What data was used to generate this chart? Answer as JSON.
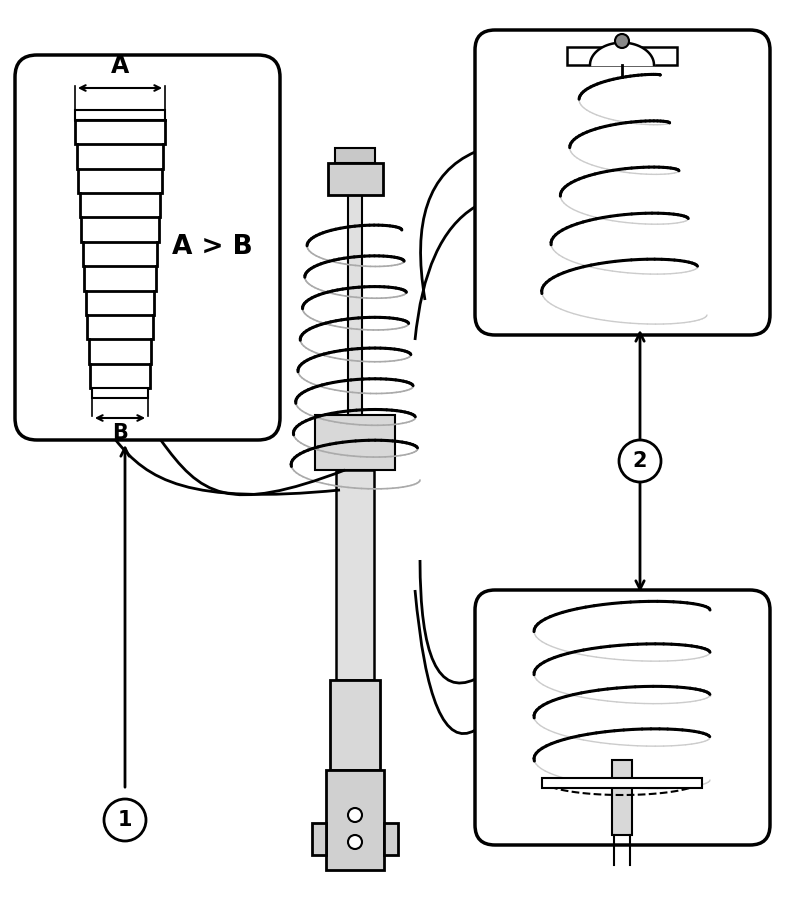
{
  "bg_color": "#ffffff",
  "fig_width": 8.0,
  "fig_height": 9.09,
  "label_A": "A",
  "label_B": "B",
  "label_AB": "A > B",
  "label_1": "1",
  "label_2": "2"
}
